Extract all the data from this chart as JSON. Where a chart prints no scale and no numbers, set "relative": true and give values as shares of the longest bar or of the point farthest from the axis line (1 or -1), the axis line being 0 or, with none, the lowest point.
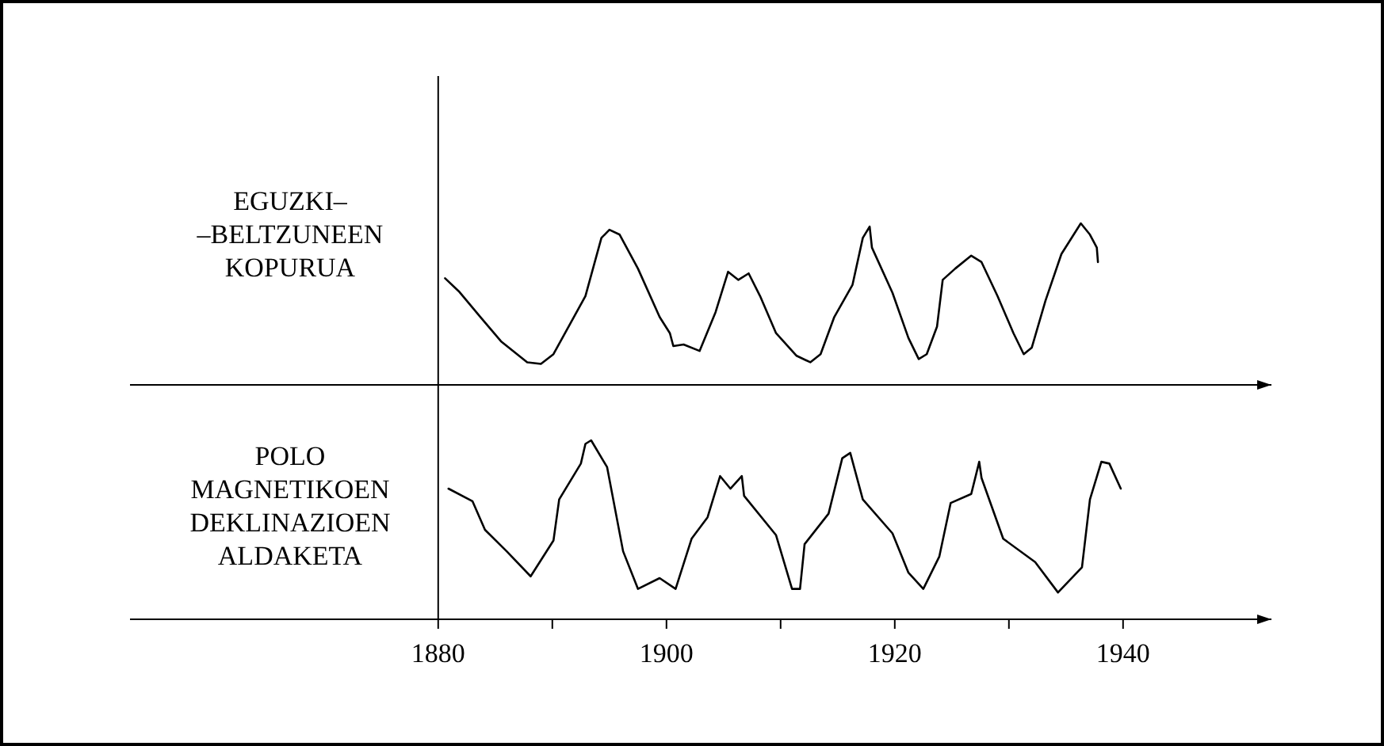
{
  "chart_data": [
    {
      "type": "line",
      "relative": true,
      "ylabel": "EGUZKI–\n–BELTZUNEEN\nKOPURUA",
      "xlim": [
        1853,
        1953
      ],
      "tick_labels": false,
      "line_style": "solid",
      "series": [
        {
          "color": "#000000",
          "x": [
            1880.6,
            1881.8,
            1883.7,
            1885.5,
            1887.8,
            1889.0,
            1890.1,
            1892.9,
            1894.3,
            1895.0,
            1895.9,
            1897.5,
            1899.4,
            1900.3,
            1900.6,
            1901.5,
            1902.9,
            1904.3,
            1905.4,
            1906.3,
            1907.2,
            1908.2,
            1909.6,
            1911.4,
            1912.6,
            1913.5,
            1914.7,
            1916.3,
            1917.2,
            1917.8,
            1918.0,
            1919.8,
            1921.2,
            1922.1,
            1922.8,
            1923.7,
            1924.2,
            1925.3,
            1926.7,
            1927.6,
            1929.0,
            1930.4,
            1931.3,
            1932.0,
            1933.2,
            1934.6,
            1936.3,
            1937.1,
            1937.7,
            1937.8
          ],
          "values": [
            0.66,
            0.58,
            0.42,
            0.27,
            0.14,
            0.13,
            0.19,
            0.55,
            0.91,
            0.96,
            0.93,
            0.72,
            0.42,
            0.32,
            0.24,
            0.25,
            0.21,
            0.45,
            0.7,
            0.65,
            0.69,
            0.55,
            0.32,
            0.18,
            0.14,
            0.19,
            0.42,
            0.62,
            0.91,
            0.98,
            0.85,
            0.57,
            0.29,
            0.16,
            0.19,
            0.36,
            0.65,
            0.72,
            0.8,
            0.76,
            0.55,
            0.32,
            0.19,
            0.23,
            0.52,
            0.81,
            1,
            0.93,
            0.85,
            0.76
          ]
        }
      ]
    },
    {
      "type": "line",
      "relative": true,
      "ylabel": "POLO\nMAGNETIKOEN\nDEKLINAZIOEN\nALDAKETA",
      "xlim": [
        1853,
        1953
      ],
      "tick_labels": "x",
      "line_style": "solid",
      "xticks": [
        1880,
        {
          "value": 1890,
          "label": null
        },
        1900,
        {
          "value": 1910,
          "label": null
        },
        1920,
        {
          "value": 1930,
          "label": null
        },
        1940
      ],
      "series": [
        {
          "color": "#000000",
          "x": [
            1880.9,
            1883.0,
            1884.1,
            1886.0,
            1888.1,
            1890.1,
            1890.6,
            1892.5,
            1892.9,
            1893.4,
            1894.8,
            1896.2,
            1897.5,
            1899.4,
            1900.8,
            1902.2,
            1903.6,
            1904.7,
            1905.6,
            1906.6,
            1906.8,
            1909.6,
            1911.0,
            1911.7,
            1912.1,
            1914.2,
            1915.4,
            1916.1,
            1917.2,
            1919.8,
            1921.2,
            1922.5,
            1923.9,
            1924.9,
            1926.7,
            1927.4,
            1927.6,
            1929.5,
            1932.3,
            1934.3,
            1936.4,
            1937.1,
            1938.1,
            1938.8,
            1939.8
          ],
          "values": [
            0.73,
            0.66,
            0.5,
            0.38,
            0.24,
            0.44,
            0.67,
            0.87,
            0.98,
            1,
            0.85,
            0.38,
            0.17,
            0.23,
            0.17,
            0.45,
            0.57,
            0.8,
            0.73,
            0.8,
            0.69,
            0.47,
            0.17,
            0.17,
            0.42,
            0.59,
            0.9,
            0.93,
            0.67,
            0.48,
            0.26,
            0.17,
            0.35,
            0.65,
            0.7,
            0.88,
            0.79,
            0.45,
            0.32,
            0.15,
            0.29,
            0.67,
            0.88,
            0.87,
            0.73
          ]
        }
      ]
    }
  ]
}
